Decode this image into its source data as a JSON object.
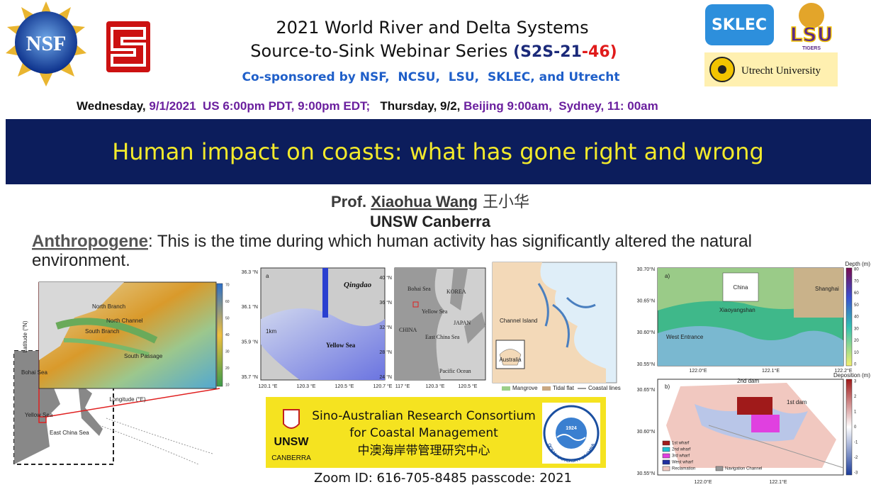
{
  "header": {
    "logos": {
      "nsf": "NSF",
      "sklec": "SKLEC",
      "lsu": "LSU",
      "lsu_sub": "TIGERS",
      "utrecht": "Utrecht University"
    },
    "title_line1": "2021 World River and Delta Systems",
    "title_line2": "Source-to-Sink Webinar Series ",
    "series_code_a": "(S2S-21",
    "series_code_b": "-46)",
    "cosponsor": "Co-sponsored by NSF,  NCSU,  LSU,  SKLEC, and Utrecht",
    "date": [
      "Wednesday, ",
      "9/1/2021  US 6:00pm PDT, 9:00pm EDT;",
      "   Thursday, 9/2, ",
      "Beijing 9:00am,  Sydney, 11: 00am"
    ]
  },
  "banner": "Human impact on coasts: what has gone right and wrong",
  "speaker": {
    "name_prefix": "Prof. ",
    "name": "Xiaohua Wang",
    "name_cn": " 王小华",
    "affiliation": "UNSW Canberra"
  },
  "definition": {
    "term": "Anthropogene",
    "line1": ": This is the time during which human activity has significantly altered the natural",
    "line2": "environment."
  },
  "maps": {
    "map1": {
      "labels": [
        "North Branch",
        "South Branch",
        "North Channel",
        "South Passage",
        "Longitude (°E)",
        "Latitude (°N)",
        "Bohai Sea",
        "Yellow Sea",
        "East China Sea"
      ],
      "colorbar": [
        "70",
        "60",
        "50",
        "40",
        "30",
        "20",
        "10"
      ]
    },
    "map2": {
      "panel": "a",
      "labels": [
        "Qingdao",
        "Yellow Sea",
        "1km"
      ],
      "yticks": [
        "36.3 °N",
        "36.1 °N",
        "35.9 °N",
        "35.7 °N"
      ],
      "xticks": [
        "120.1 °E",
        "120.3 °E",
        "120.5 °E",
        "120.7 °E"
      ]
    },
    "map3": {
      "labels": [
        "Bohai Sea",
        "KOREA",
        "Yellow Sea",
        "CHINA",
        "JAPAN",
        "East China Sea",
        "Pacific Ocean"
      ],
      "yticks": [
        "40 °N",
        "36 °N",
        "32 °N",
        "28 °N",
        "24 °N"
      ],
      "xticks": [
        "117 °E",
        "120.3 °E",
        "120.5 °E"
      ]
    },
    "map4": {
      "labels": [
        "Channel Island",
        "Australia"
      ],
      "legend": [
        "Mangrove",
        "Tidal flat",
        "Coastal lines"
      ]
    },
    "map5": {
      "panel": "a)",
      "colorbar_title": "Depth (m)",
      "colorbar": [
        "80",
        "70",
        "60",
        "50",
        "40",
        "30",
        "20",
        "10",
        "0"
      ],
      "labels": [
        "China",
        "Shanghai",
        "West Entrance",
        "Xiaoyangshan"
      ],
      "yticks": [
        "30.70°N",
        "30.65°N",
        "30.60°N",
        "30.55°N"
      ],
      "xticks": [
        "122.0°E",
        "122.1°E",
        "122.2°E"
      ]
    },
    "map6": {
      "panel": "b)",
      "colorbar_title": "Deposition (m)",
      "colorbar": [
        "3",
        "2",
        "1",
        "0",
        "-1",
        "-2",
        "-3"
      ],
      "labels": [
        "2nd dam",
        "1st dam"
      ],
      "legend": [
        "1st wharf",
        "2nd wharf",
        "3rd wharf",
        "West wharf",
        "Reclamation",
        "Navigation Channel"
      ],
      "yticks": [
        "30.65°N",
        "30.60°N",
        "30.55°N"
      ],
      "xticks": [
        "122.0°E",
        "122.1°E"
      ]
    }
  },
  "consortium": {
    "line1": "Sino-Australian Research Consortium",
    "line2": "for Coastal Management",
    "line3": "中澳海岸带管理研究中心",
    "unsw": "UNSW",
    "unsw_sub": "CANBERRA",
    "ocean": "OCEAN UNIVERSITY OF CHINA",
    "ocean_year": "1924"
  },
  "zoom": "Zoom ID: 616-705-8485 passcode: 2021"
}
